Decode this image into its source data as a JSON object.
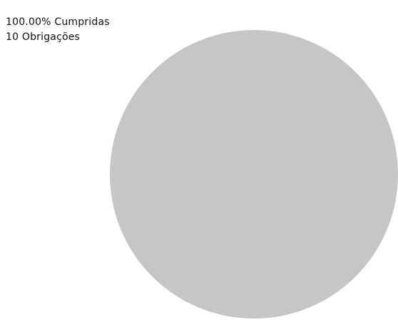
{
  "summary": {
    "percent_text": "100.00% Cumpridas",
    "count_text": "10 Obrigações"
  },
  "chart_data": {
    "type": "pie",
    "title": "",
    "slices": [
      {
        "value": 100.0,
        "color": "#c6c6c6"
      }
    ]
  }
}
